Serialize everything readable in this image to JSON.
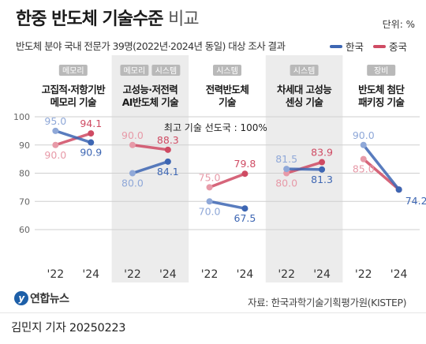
{
  "header": {
    "title_main": "한중 반도체 기술수준",
    "title_light": "비교",
    "unit": "단위: %",
    "subtitle": "반도체 분야 국내 전문가 39명(2022년·2024년 동일) 대상 조사 결과"
  },
  "legend": {
    "korea": "한국",
    "china": "중국"
  },
  "colors": {
    "korea": "#3d66b3",
    "korea_light": "#8fa8d8",
    "china": "#cf4b63",
    "china_light": "#e79aa8",
    "tag_bg": "#b9b9b9",
    "panel_shade": "#ececec"
  },
  "reference_label": "최고 기술 선도국 : 100%",
  "footer": {
    "logo_text": "연합뉴스",
    "source": "자료: 한국과학기술기획평가원(KISTEP)",
    "credit": "김민지 기자  20250223"
  },
  "chart_data": {
    "type": "line",
    "x": [
      "'22",
      "'24"
    ],
    "ylim": [
      60,
      100
    ],
    "yticks": [
      60,
      70,
      80,
      90,
      100
    ],
    "grid": true,
    "legend_position": "top-right",
    "panels": [
      {
        "tags": [
          "메모리"
        ],
        "title_lines": [
          "고집적·저항기반",
          "메모리 기술"
        ],
        "shaded": false,
        "korea": [
          95.0,
          90.9
        ],
        "china": [
          90.0,
          94.1
        ],
        "korea_labels": [
          "95.0",
          "90.9"
        ],
        "china_labels": [
          "90.0",
          "94.1"
        ]
      },
      {
        "tags": [
          "메모리",
          "시스템"
        ],
        "title_lines": [
          "고성능·저전력",
          "AI반도체 기술"
        ],
        "shaded": true,
        "korea": [
          80.0,
          84.1
        ],
        "china": [
          90.0,
          88.3
        ],
        "korea_labels": [
          "80.0",
          "84.1"
        ],
        "china_labels": [
          "90.0",
          "88.3"
        ]
      },
      {
        "tags": [
          "시스템"
        ],
        "title_lines": [
          "전력반도체",
          "기술"
        ],
        "shaded": false,
        "korea": [
          70.0,
          67.5
        ],
        "china": [
          75.0,
          79.8
        ],
        "korea_labels": [
          "70.0",
          "67.5"
        ],
        "china_labels": [
          "75.0",
          "79.8"
        ]
      },
      {
        "tags": [
          "시스템"
        ],
        "title_lines": [
          "차세대 고성능",
          "센싱 기술"
        ],
        "shaded": true,
        "korea": [
          81.5,
          81.3
        ],
        "china": [
          80.0,
          83.9
        ],
        "korea_labels": [
          "81.5",
          "81.3"
        ],
        "china_labels": [
          "80.0",
          "83.9"
        ]
      },
      {
        "tags": [
          "장비"
        ],
        "title_lines": [
          "반도체 첨단",
          "패키징 기술"
        ],
        "shaded": false,
        "korea": [
          90.0,
          74.2
        ],
        "china": [
          85.0,
          74.2
        ],
        "korea_labels": [
          "90.0",
          "74.2"
        ],
        "china_labels": [
          "85.0",
          ""
        ]
      }
    ]
  }
}
